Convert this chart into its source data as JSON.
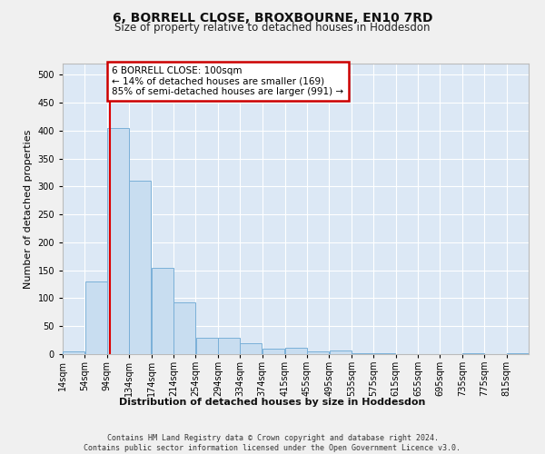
{
  "title": "6, BORRELL CLOSE, BROXBOURNE, EN10 7RD",
  "subtitle": "Size of property relative to detached houses in Hoddesdon",
  "xlabel": "Distribution of detached houses by size in Hoddesdon",
  "ylabel": "Number of detached properties",
  "bar_color": "#c8ddf0",
  "bar_edge_color": "#7ab0d8",
  "background_color": "#dce8f5",
  "grid_color": "#ffffff",
  "redline_x": 100,
  "annotation_text": "6 BORRELL CLOSE: 100sqm\n← 14% of detached houses are smaller (169)\n85% of semi-detached houses are larger (991) →",
  "annotation_box_color": "#ffffff",
  "annotation_box_edge": "#cc0000",
  "footer": "Contains HM Land Registry data © Crown copyright and database right 2024.\nContains public sector information licensed under the Open Government Licence v3.0.",
  "bins_left": [
    14,
    54,
    94,
    134,
    174,
    214,
    254,
    294,
    334,
    374,
    415,
    455,
    495,
    535,
    575,
    615,
    655,
    695,
    735,
    775,
    815
  ],
  "values": [
    5,
    130,
    405,
    310,
    155,
    92,
    29,
    29,
    20,
    10,
    12,
    5,
    6,
    1,
    1,
    0,
    0,
    0,
    1,
    0,
    2
  ],
  "bin_width": 40,
  "ylim": [
    0,
    520
  ],
  "yticks": [
    0,
    50,
    100,
    150,
    200,
    250,
    300,
    350,
    400,
    450,
    500
  ],
  "fig_width": 6.0,
  "fig_height": 5.0,
  "title_fontsize": 10,
  "subtitle_fontsize": 8.5,
  "ylabel_fontsize": 8,
  "xlabel_fontsize": 8,
  "tick_fontsize": 7,
  "footer_fontsize": 6,
  "ann_fontsize": 7.5
}
